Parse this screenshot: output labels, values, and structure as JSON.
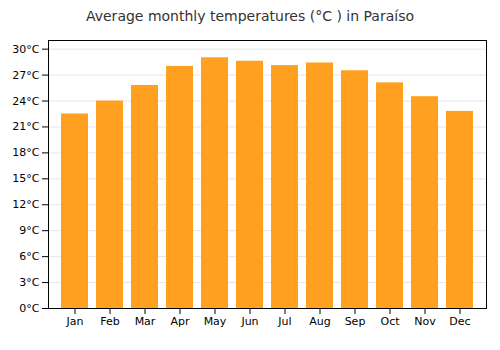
{
  "chart_data": {
    "type": "bar",
    "title": "Average monthly temperatures (°C ) in Paraí­so",
    "categories": [
      "Jan",
      "Feb",
      "Mar",
      "Apr",
      "May",
      "Jun",
      "Jul",
      "Aug",
      "Sep",
      "Oct",
      "Nov",
      "Dec"
    ],
    "values": [
      22.5,
      24.0,
      25.8,
      28.0,
      29.0,
      28.6,
      28.1,
      28.4,
      27.5,
      26.1,
      24.5,
      22.8
    ],
    "color": "#FFA020",
    "ylim": [
      0,
      31
    ],
    "yticks": [
      {
        "value": 0,
        "label": "0°C"
      },
      {
        "value": 3,
        "label": "3°C"
      },
      {
        "value": 6,
        "label": "6°C"
      },
      {
        "value": 9,
        "label": "9°C"
      },
      {
        "value": 12,
        "label": "12°C"
      },
      {
        "value": 15,
        "label": "15°C"
      },
      {
        "value": 18,
        "label": "18°C"
      },
      {
        "value": 21,
        "label": "21°C"
      },
      {
        "value": 24,
        "label": "24°C"
      },
      {
        "value": 27,
        "label": "27°C"
      },
      {
        "value": 30,
        "label": "30°C"
      }
    ],
    "grid": true
  }
}
